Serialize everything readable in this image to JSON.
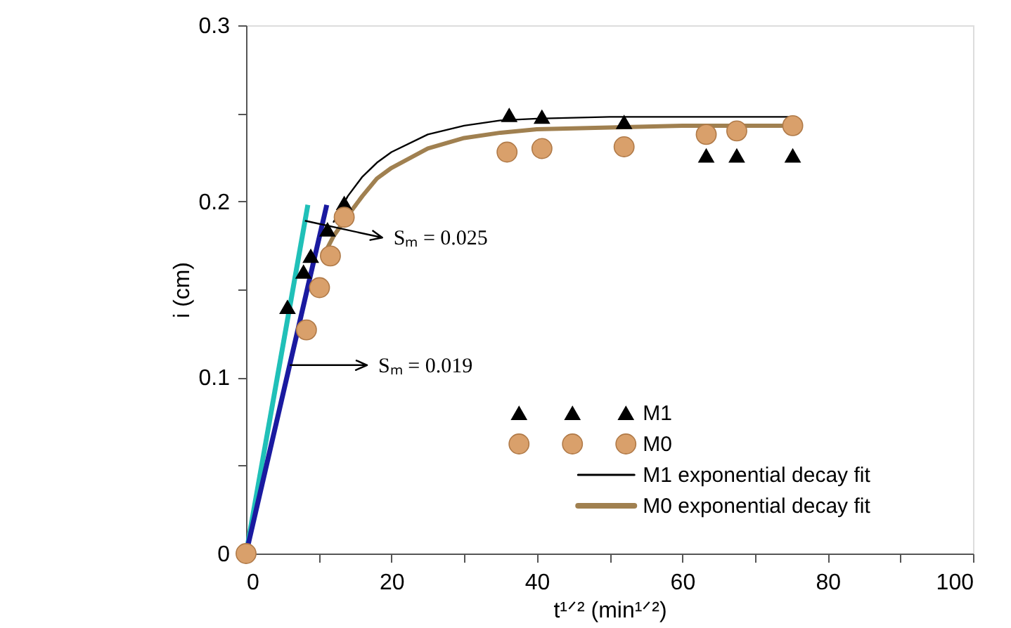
{
  "chart_data": {
    "type": "scatter",
    "xlabel": "t¹ᐟ² (min¹ᐟ²)",
    "ylabel": "i (cm)",
    "xlim": [
      0,
      100
    ],
    "ylim": [
      0,
      0.3
    ],
    "xticks": [
      0,
      {
        "value": 10,
        "label": null
      },
      20,
      {
        "value": 30,
        "label": null
      },
      40,
      {
        "value": 50,
        "label": null
      },
      60,
      {
        "value": 70,
        "label": null
      },
      80,
      {
        "value": 90,
        "label": null
      },
      100
    ],
    "yticks": [
      0,
      {
        "value": 0.05,
        "label": null
      },
      0.1,
      {
        "value": 0.15,
        "label": null
      },
      0.2,
      {
        "value": 0.25,
        "label": null
      },
      0.3
    ],
    "grid": false,
    "legend": "bottom right",
    "series": [
      {
        "type": "line",
        "color": "#20c0b8",
        "line_style": "solid",
        "marker": "none",
        "x": [
          0,
          8.5
        ],
        "values": [
          0,
          0.198
        ]
      },
      {
        "type": "line",
        "color": "#1a1aa0",
        "line_style": "solid",
        "marker": "none",
        "x": [
          0,
          11.1
        ],
        "values": [
          0,
          0.198
        ]
      },
      {
        "name": "M1 exponential decay fit",
        "type": "line",
        "color": "#000000",
        "line_style": "solid",
        "marker": "none",
        "x": [
          12,
          14,
          16,
          18,
          20,
          25,
          30,
          35,
          40,
          50,
          60,
          75
        ],
        "values": [
          0.188,
          0.203,
          0.214,
          0.222,
          0.228,
          0.238,
          0.243,
          0.246,
          0.247,
          0.248,
          0.248,
          0.248
        ]
      },
      {
        "name": "M0 exponential decay fit",
        "type": "line",
        "color": "#a08050",
        "line_style": "solid",
        "marker": "none",
        "x": [
          11,
          12,
          14,
          16,
          18,
          20,
          25,
          30,
          35,
          40,
          50,
          60,
          75
        ],
        "values": [
          0.172,
          0.18,
          0.192,
          0.203,
          0.213,
          0.219,
          0.23,
          0.236,
          0.239,
          0.241,
          0.242,
          0.243,
          0.243
        ]
      },
      {
        "name": "M1",
        "color": "#000000",
        "marker": "triangle",
        "x": [
          5.7,
          7.9,
          8.9,
          11.2,
          13.5,
          36.2,
          40.7,
          52.0,
          63.3,
          67.5,
          75.2
        ],
        "values": [
          0.14,
          0.16,
          0.169,
          0.184,
          0.199,
          0.249,
          0.248,
          0.245,
          0.226,
          0.226,
          0.226
        ]
      },
      {
        "name": "M0",
        "color": "#d9a06b",
        "marker": "circle",
        "x": [
          0,
          8.3,
          10.1,
          11.6,
          13.5,
          35.9,
          40.7,
          52.0,
          63.3,
          67.5,
          75.2
        ],
        "values": [
          0,
          0.127,
          0.151,
          0.169,
          0.191,
          0.228,
          0.23,
          0.231,
          0.238,
          0.24,
          0.243
        ]
      }
    ],
    "annotations": [
      {
        "text": "Sₘ = 0.025",
        "x": 8.1,
        "y": 0.189
      },
      {
        "text": "Sₘ = 0.019",
        "x": 6.0,
        "y": 0.107
      }
    ]
  }
}
